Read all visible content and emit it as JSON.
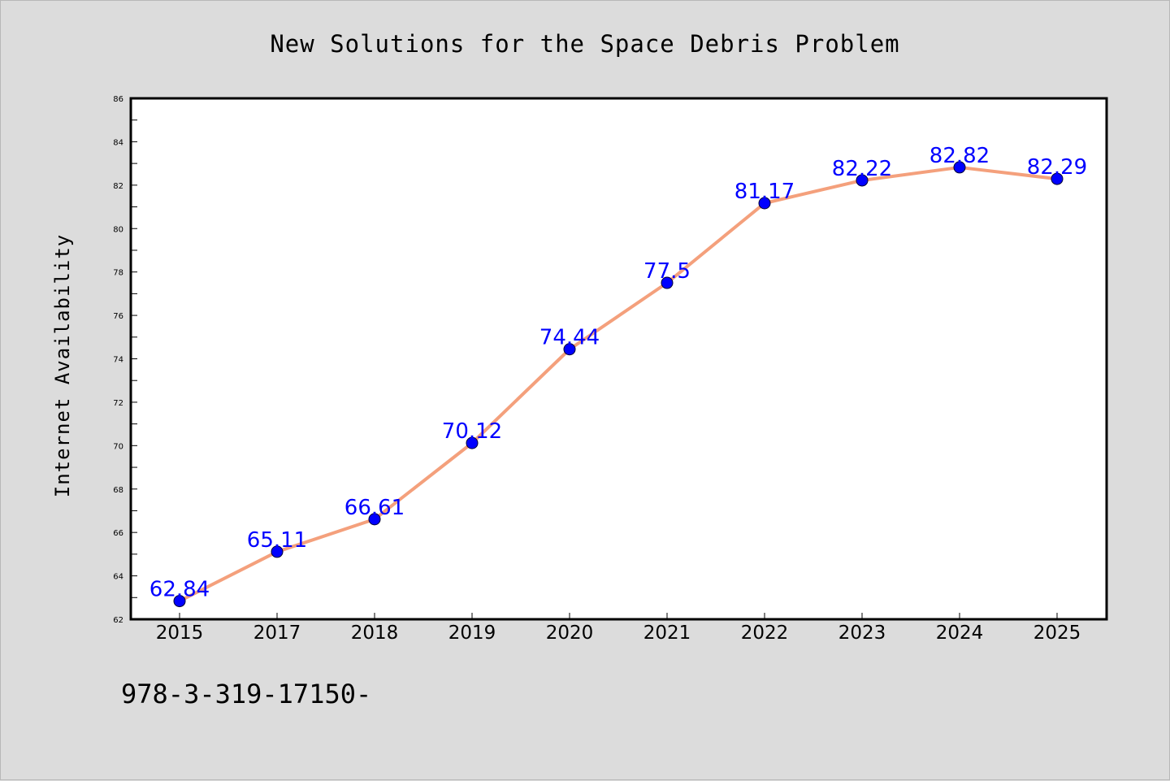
{
  "chart_data": {
    "type": "line",
    "title": "New Solutions for the Space Debris Problem",
    "xlabel": "",
    "ylabel": "Internet Availability",
    "categories": [
      "2015",
      "2017",
      "2018",
      "2019",
      "2020",
      "2021",
      "2022",
      "2023",
      "2024",
      "2025"
    ],
    "series": [
      {
        "values": [
          62.84,
          65.11,
          66.61,
          70.12,
          74.44,
          77.5,
          81.17,
          82.22,
          82.82,
          82.29
        ],
        "data_labels": [
          "62.84",
          "65.11",
          "66.61",
          "70.12",
          "74.44",
          "77.5",
          "81.17",
          "82.22",
          "82.82",
          "82.29"
        ]
      }
    ],
    "ylim": [
      62,
      86
    ],
    "yticks": [
      "62",
      "64",
      "66",
      "68",
      "70",
      "72",
      "74",
      "76",
      "78",
      "80",
      "82",
      "84",
      "86"
    ],
    "grid": false,
    "legend": "none",
    "colors": {
      "line": "#f4a07c",
      "marker": "#0000ff",
      "data_label": "#0000ff",
      "background": "#dcdcdc",
      "plot_area": "#ffffff"
    }
  },
  "footer_text": "978-3-319-17150-"
}
